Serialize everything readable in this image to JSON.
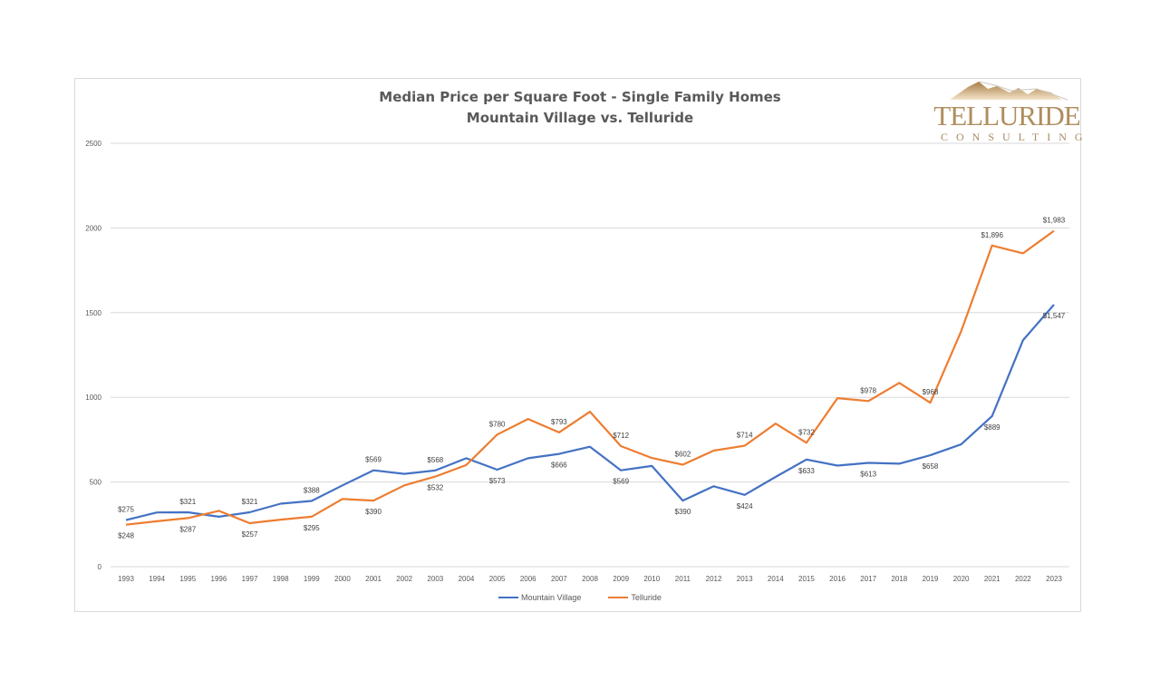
{
  "chart_data": {
    "type": "line",
    "title": "Median Price per Square Foot - Single Family Homes",
    "subtitle": "Mountain Village vs. Telluride",
    "xlabel": "",
    "ylabel": "",
    "ylim": [
      0,
      2500
    ],
    "yticks": [
      0,
      500,
      1000,
      1500,
      2000,
      2500
    ],
    "grid": true,
    "legend_position": "bottom",
    "categories": [
      "1993",
      "1994",
      "1995",
      "1996",
      "1997",
      "1998",
      "1999",
      "2000",
      "2001",
      "2002",
      "2003",
      "2004",
      "2005",
      "2006",
      "2007",
      "2008",
      "2009",
      "2010",
      "2011",
      "2012",
      "2013",
      "2014",
      "2015",
      "2016",
      "2017",
      "2018",
      "2019",
      "2020",
      "2021",
      "2022",
      "2023"
    ],
    "series": [
      {
        "name": "Mountain Village",
        "color": "#4472c4",
        "values": [
          275,
          320,
          321,
          295,
          321,
          372,
          388,
          480,
          569,
          548,
          568,
          640,
          573,
          640,
          666,
          708,
          569,
          595,
          390,
          475,
          424,
          530,
          633,
          597,
          613,
          608,
          658,
          722,
          889,
          1338,
          1547
        ],
        "data_labels": {
          "1993": "$275",
          "1995": "$321",
          "1997": "$321",
          "1999": "$388",
          "2001": "$569",
          "2003": "$568",
          "2005": "$573",
          "2007": "$666",
          "2009": "$569",
          "2011": "$390",
          "2013": "$424",
          "2015": "$633",
          "2017": "$613",
          "2019": "$658",
          "2021": "$889",
          "2023": "$1,547"
        }
      },
      {
        "name": "Telluride",
        "color": "#ed7d31",
        "values": [
          248,
          268,
          287,
          330,
          257,
          278,
          295,
          400,
          390,
          480,
          532,
          600,
          780,
          872,
          793,
          915,
          712,
          642,
          602,
          685,
          714,
          845,
          732,
          995,
          978,
          1085,
          968,
          1390,
          1896,
          1850,
          1983
        ],
        "data_labels": {
          "1993": "$248",
          "1995": "$287",
          "1997": "$257",
          "1999": "$295",
          "2001": "$390",
          "2003": "$532",
          "2005": "$780",
          "2007": "$793",
          "2009": "$712",
          "2011": "$602",
          "2013": "$714",
          "2015": "$732",
          "2017": "$978",
          "2019": "$968",
          "2021": "$1,896",
          "2023": "$1,983"
        }
      }
    ]
  },
  "logo": {
    "name": "TELLURIDE",
    "tagline": "CONSULTING",
    "color": "#b08d5e"
  },
  "legend": {
    "items": [
      {
        "label": "Mountain Village",
        "color": "#4472c4"
      },
      {
        "label": "Telluride",
        "color": "#ed7d31"
      }
    ]
  }
}
